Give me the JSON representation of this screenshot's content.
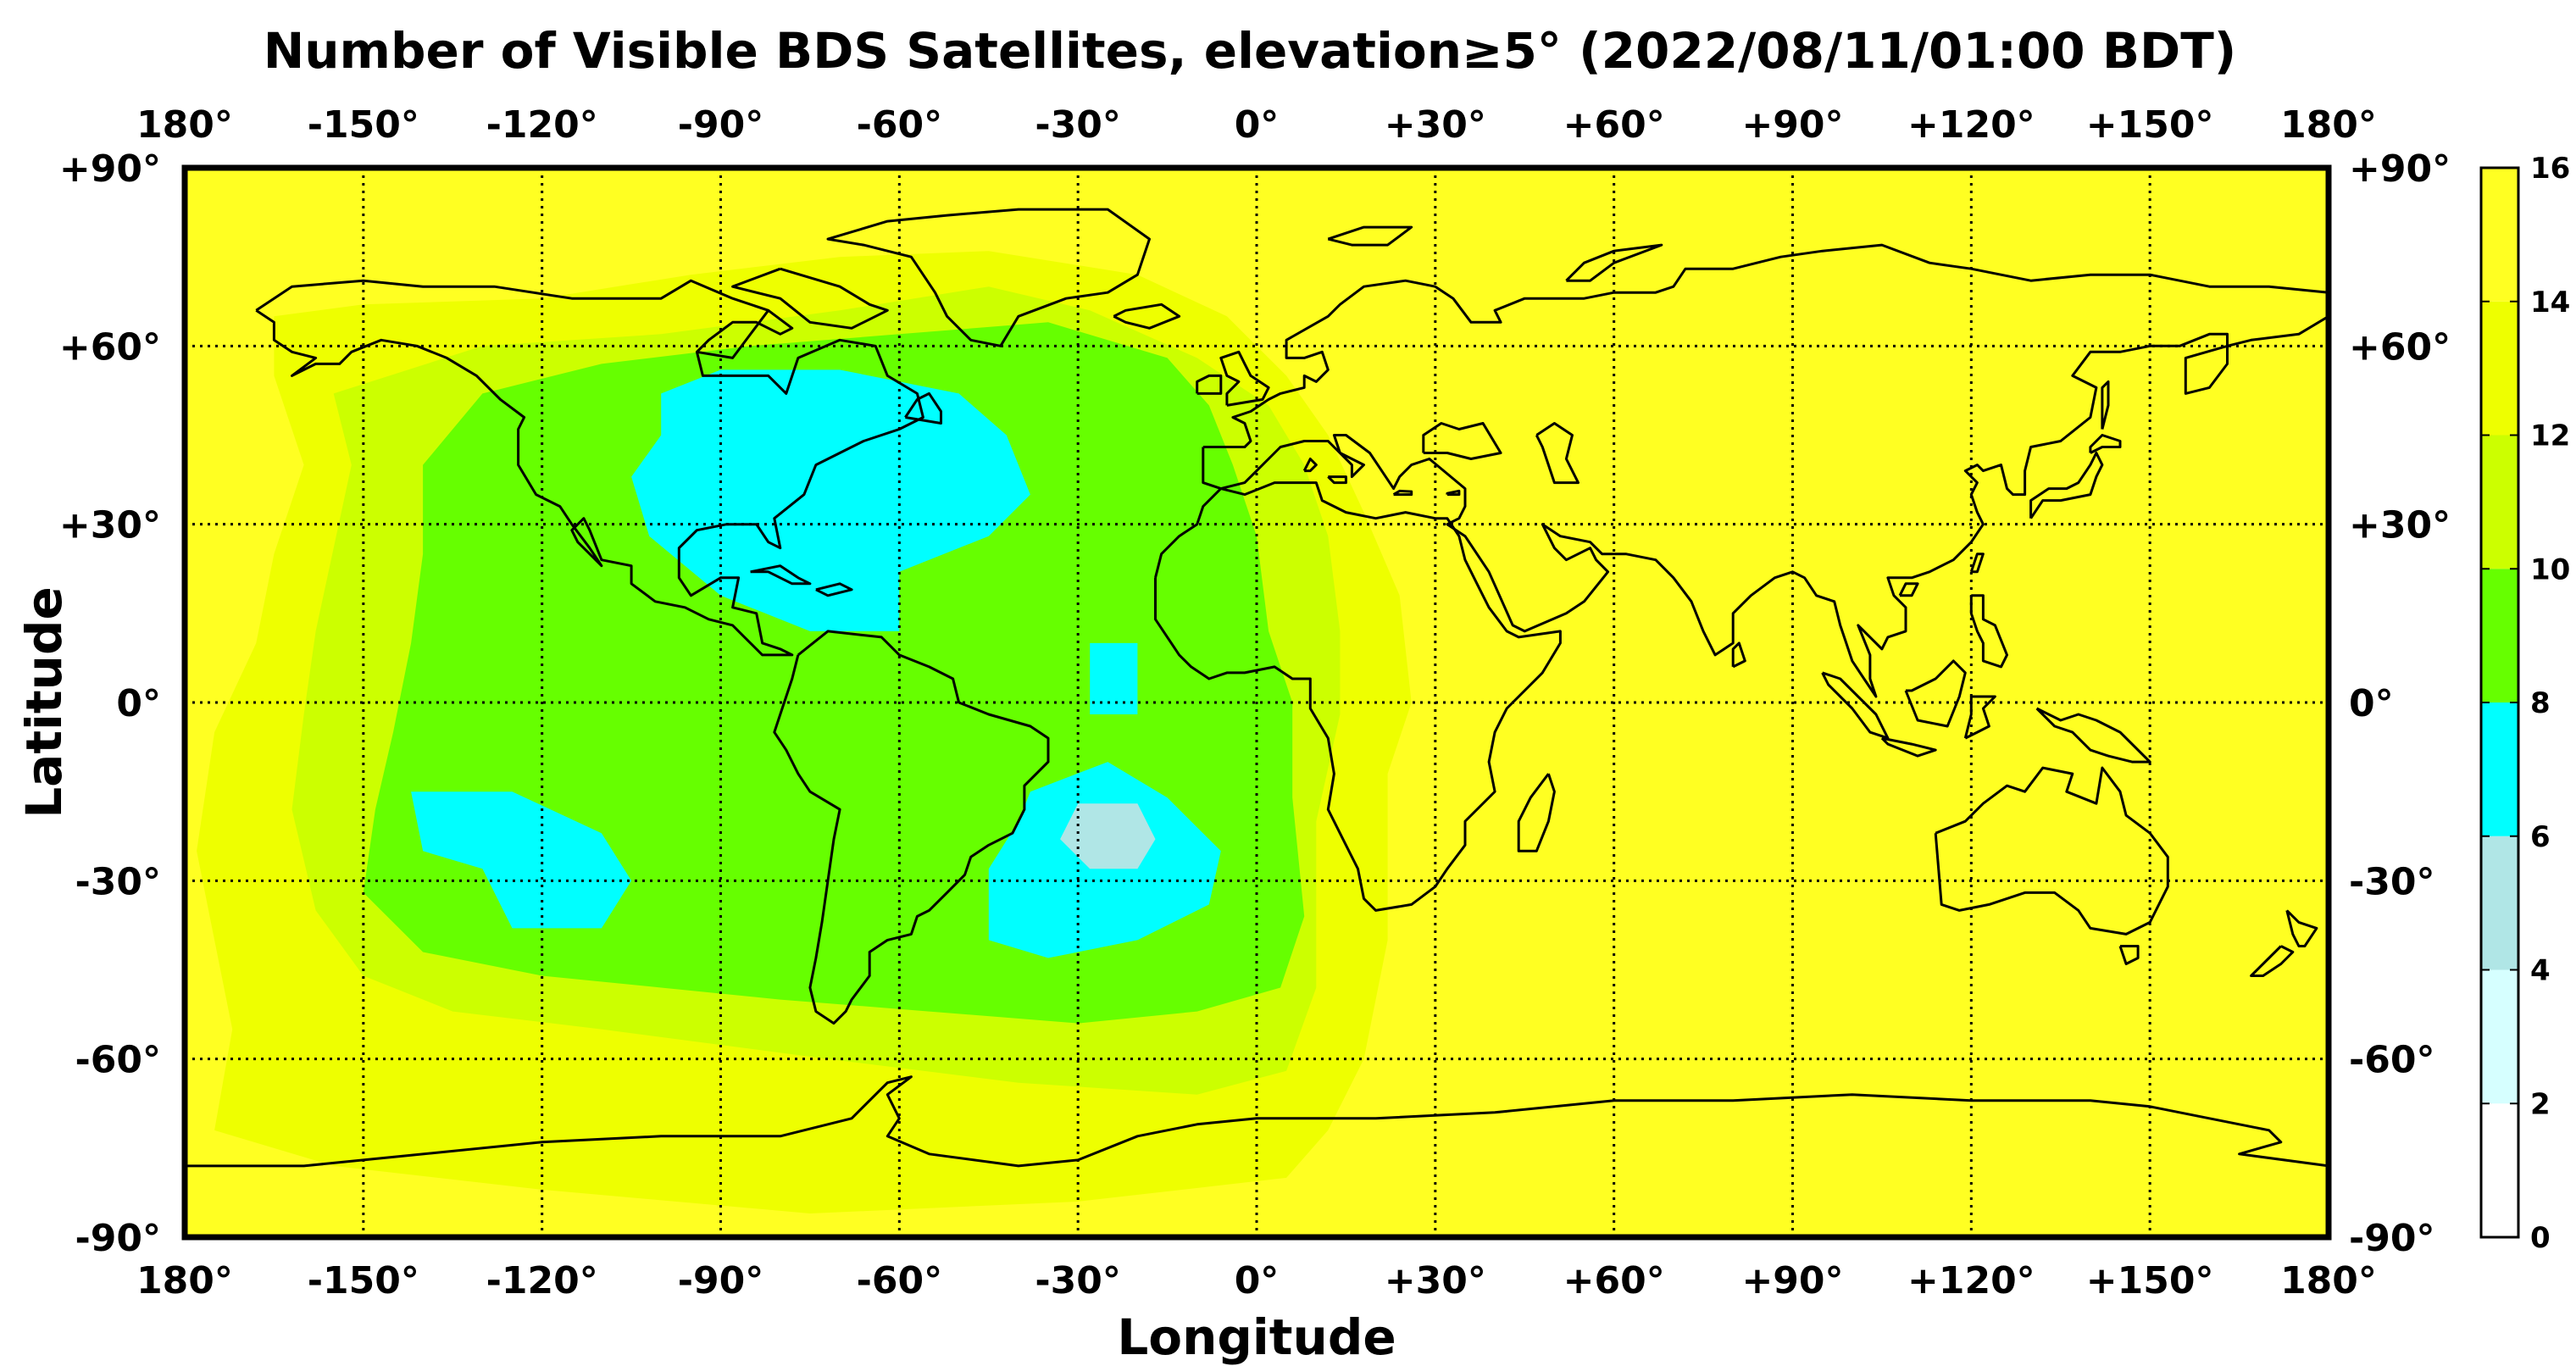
{
  "title": "Number of Visible BDS Satellites, elevation≥5° (2022/08/11/01:00 BDT)",
  "xlabel": "Longitude",
  "ylabel": "Latitude",
  "x_ticks": [
    "180°",
    "-150°",
    "-120°",
    "-90°",
    "-60°",
    "-30°",
    "0°",
    "+30°",
    "+60°",
    "+90°",
    "+120°",
    "+150°",
    "180°"
  ],
  "y_ticks": [
    "+90°",
    "+60°",
    "+30°",
    "0°",
    "-30°",
    "-60°",
    "-90°"
  ],
  "chart_data": {
    "type": "heatmap",
    "title": "Number of Visible BDS Satellites, elevation≥5° (2022/08/11/01:00 BDT)",
    "xlabel": "Longitude",
    "ylabel": "Latitude",
    "xlim": [
      -180,
      180
    ],
    "ylim": [
      -90,
      90
    ],
    "grid": true,
    "x_tick_values": [
      -180,
      -150,
      -120,
      -90,
      -60,
      -30,
      0,
      30,
      60,
      90,
      120,
      150,
      180
    ],
    "y_tick_values": [
      90,
      60,
      30,
      0,
      -30,
      -60,
      -90
    ],
    "colorbar": {
      "range": [
        0,
        16
      ],
      "tick_labels": [
        "0",
        "2",
        "4",
        "6",
        "8",
        "10",
        "12",
        "14",
        "16"
      ],
      "tick_values": [
        0,
        2,
        4,
        6,
        8,
        10,
        12,
        14,
        16
      ],
      "bins": [
        {
          "min": 0,
          "max": 2,
          "color": "#ffffff"
        },
        {
          "min": 2,
          "max": 4,
          "color": "#d6ffff"
        },
        {
          "min": 4,
          "max": 6,
          "color": "#b0e6e6"
        },
        {
          "min": 6,
          "max": 8,
          "color": "#00ffff"
        },
        {
          "min": 8,
          "max": 10,
          "color": "#66ff00"
        },
        {
          "min": 10,
          "max": 12,
          "color": "#ccff00"
        },
        {
          "min": 12,
          "max": 14,
          "color": "#eeff00"
        },
        {
          "min": 14,
          "max": 16,
          "color": "#ffff22"
        }
      ]
    },
    "background_value": 15,
    "regions": [
      {
        "value": 13,
        "polygon": [
          [
            -165,
            65
          ],
          [
            -150,
            67
          ],
          [
            -120,
            68
          ],
          [
            -95,
            72
          ],
          [
            -70,
            75
          ],
          [
            -45,
            76
          ],
          [
            -20,
            72
          ],
          [
            -5,
            65
          ],
          [
            5,
            55
          ],
          [
            12,
            45
          ],
          [
            18,
            32
          ],
          [
            24,
            18
          ],
          [
            26,
            0
          ],
          [
            22,
            -12
          ],
          [
            22,
            -40
          ],
          [
            18,
            -60
          ],
          [
            12,
            -72
          ],
          [
            5,
            -80
          ],
          [
            -30,
            -84
          ],
          [
            -75,
            -86
          ],
          [
            -120,
            -82
          ],
          [
            -155,
            -78
          ],
          [
            -175,
            -72
          ],
          [
            -172,
            -55
          ],
          [
            -175,
            -40
          ],
          [
            -178,
            -25
          ],
          [
            -175,
            -5
          ],
          [
            -168,
            10
          ],
          [
            -165,
            25
          ],
          [
            -160,
            40
          ],
          [
            -165,
            55
          ]
        ]
      },
      {
        "value": 11,
        "polygon": [
          [
            -155,
            52
          ],
          [
            -130,
            60
          ],
          [
            -100,
            62
          ],
          [
            -70,
            66
          ],
          [
            -45,
            70
          ],
          [
            -28,
            66
          ],
          [
            -10,
            58
          ],
          [
            2,
            50
          ],
          [
            8,
            40
          ],
          [
            12,
            28
          ],
          [
            14,
            12
          ],
          [
            14,
            -2
          ],
          [
            10,
            -20
          ],
          [
            10,
            -48
          ],
          [
            5,
            -62
          ],
          [
            -10,
            -66
          ],
          [
            -40,
            -64
          ],
          [
            -72,
            -60
          ],
          [
            -110,
            -55
          ],
          [
            -135,
            -52
          ],
          [
            -150,
            -46
          ],
          [
            -158,
            -35
          ],
          [
            -162,
            -18
          ],
          [
            -160,
            -2
          ],
          [
            -158,
            12
          ],
          [
            -155,
            26
          ],
          [
            -152,
            40
          ]
        ]
      },
      {
        "value": 9,
        "polygon": [
          [
            -140,
            40
          ],
          [
            -130,
            52
          ],
          [
            -110,
            57
          ],
          [
            -85,
            60
          ],
          [
            -60,
            62
          ],
          [
            -35,
            64
          ],
          [
            -15,
            58
          ],
          [
            -8,
            50
          ],
          [
            -4,
            40
          ],
          [
            0,
            28
          ],
          [
            2,
            12
          ],
          [
            6,
            0
          ],
          [
            6,
            -16
          ],
          [
            8,
            -36
          ],
          [
            4,
            -48
          ],
          [
            -10,
            -52
          ],
          [
            -30,
            -54
          ],
          [
            -55,
            -52
          ],
          [
            -80,
            -50
          ],
          [
            -100,
            -48
          ],
          [
            -120,
            -46
          ],
          [
            -140,
            -42
          ],
          [
            -150,
            -32
          ],
          [
            -148,
            -18
          ],
          [
            -145,
            -5
          ],
          [
            -142,
            10
          ],
          [
            -140,
            25
          ]
        ]
      },
      {
        "value": 7,
        "polygon": [
          [
            -100,
            52
          ],
          [
            -90,
            56
          ],
          [
            -70,
            56
          ],
          [
            -50,
            52
          ],
          [
            -42,
            45
          ],
          [
            -38,
            35
          ],
          [
            -45,
            28
          ],
          [
            -60,
            22
          ],
          [
            -60,
            12
          ],
          [
            -75,
            12
          ],
          [
            -90,
            18
          ],
          [
            -102,
            28
          ],
          [
            -105,
            38
          ],
          [
            -100,
            45
          ]
        ]
      },
      {
        "value": 7,
        "polygon": [
          [
            -28,
            10
          ],
          [
            -20,
            10
          ],
          [
            -20,
            -2
          ],
          [
            -28,
            -2
          ]
        ]
      },
      {
        "value": 7,
        "polygon": [
          [
            -38,
            -15
          ],
          [
            -25,
            -10
          ],
          [
            -15,
            -16
          ],
          [
            -6,
            -25
          ],
          [
            -8,
            -34
          ],
          [
            -20,
            -40
          ],
          [
            -35,
            -43
          ],
          [
            -45,
            -40
          ],
          [
            -45,
            -28
          ],
          [
            -40,
            -20
          ]
        ]
      },
      {
        "value": 7,
        "polygon": [
          [
            -142,
            -15
          ],
          [
            -125,
            -15
          ],
          [
            -110,
            -22
          ],
          [
            -105,
            -30
          ],
          [
            -110,
            -38
          ],
          [
            -125,
            -38
          ],
          [
            -130,
            -28
          ],
          [
            -140,
            -25
          ]
        ]
      },
      {
        "value": 5,
        "polygon": [
          [
            -30,
            -17
          ],
          [
            -20,
            -17
          ],
          [
            -17,
            -23
          ],
          [
            -20,
            -28
          ],
          [
            -28,
            -28
          ],
          [
            -33,
            -23
          ]
        ]
      }
    ],
    "overlay": "coastlines"
  }
}
